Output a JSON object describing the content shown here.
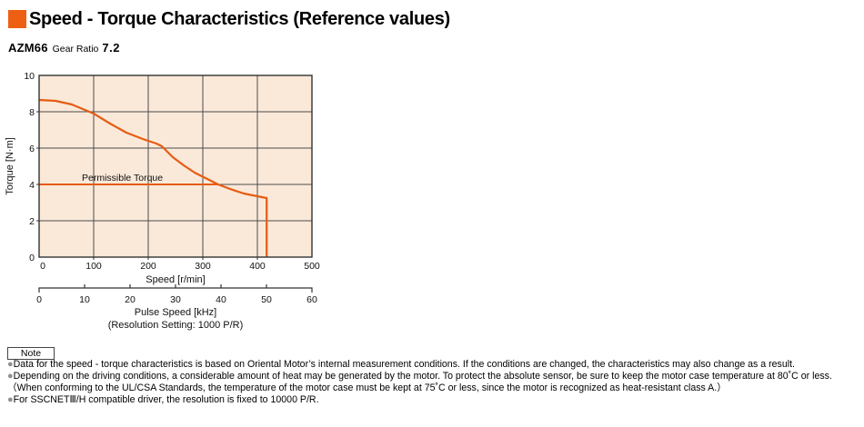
{
  "page": {
    "title": "Speed - Torque Characteristics (Reference values)",
    "subtitle_model": "AZM66",
    "subtitle_label": "Gear Ratio",
    "subtitle_value": "7.2"
  },
  "colors": {
    "accent": "#ed5f13",
    "curve": "#e65c13",
    "plot-bg": "#fae9d9",
    "grid": "#4c4c4c",
    "bullet": "#8f8f8f"
  },
  "chart_data": {
    "type": "line",
    "title": "Speed - Torque Characteristics (Reference values)",
    "xlabel": "Speed [r/min]",
    "ylabel": "Torque [N·m]",
    "x2label": "Pulse Speed [kHz]",
    "x2note": "(Resolution Setting: 1000 P/R)",
    "xlim": [
      0,
      500
    ],
    "ylim": [
      0,
      10
    ],
    "x2lim": [
      0,
      60
    ],
    "x_ticks": [
      0,
      100,
      200,
      300,
      400,
      500
    ],
    "y_ticks": [
      10,
      8,
      6,
      4,
      2,
      0
    ],
    "x2_ticks": [
      0,
      10,
      20,
      30,
      40,
      50,
      60
    ],
    "grid": true,
    "series": [
      {
        "name": "speed-torque-curve",
        "color": "#e65c13",
        "points": [
          [
            0,
            8.65
          ],
          [
            30,
            8.6
          ],
          [
            60,
            8.4
          ],
          [
            100,
            7.9
          ],
          [
            130,
            7.35
          ],
          [
            160,
            6.85
          ],
          [
            190,
            6.5
          ],
          [
            215,
            6.25
          ],
          [
            225,
            6.1
          ],
          [
            245,
            5.5
          ],
          [
            265,
            5.05
          ],
          [
            285,
            4.65
          ],
          [
            305,
            4.35
          ],
          [
            328,
            4.0
          ],
          [
            350,
            3.75
          ],
          [
            375,
            3.5
          ],
          [
            400,
            3.35
          ],
          [
            417,
            3.25
          ],
          [
            417,
            0
          ]
        ]
      },
      {
        "name": "permissible-torque-line",
        "label": "Permissible Torque",
        "color": "#e65c13",
        "points": [
          [
            0,
            4.0
          ],
          [
            328,
            4.0
          ]
        ]
      }
    ]
  },
  "note": {
    "box_label": "Note",
    "items": [
      {
        "bullet": "●",
        "text": "Data for the speed - torque characteristics is based on Oriental Motor’s internal measurement conditions. If the conditions are changed, the characteristics may also change as a result."
      },
      {
        "bullet": "●",
        "text": "Depending on the driving conditions, a considerable amount of heat may be generated by the motor.  To protect the absolute sensor, be sure to keep the motor case temperature at 80˚C or less."
      },
      {
        "bullet": "",
        "text": "（When conforming to the UL/CSA Standards, the temperature of the motor case must be kept at 75˚C or less, since the motor is recognized as heat-resistant class A.）"
      },
      {
        "bullet": "●",
        "text": "For SSCNETⅢ/H compatible driver, the resolution is fixed to 10000 P/R."
      }
    ]
  }
}
